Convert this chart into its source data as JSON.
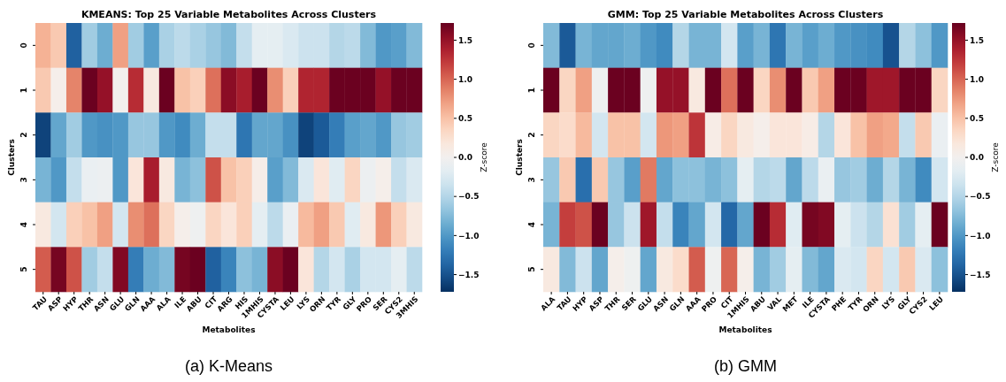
{
  "chart_data": [
    {
      "type": "heatmap",
      "title": "KMEANS: Top 25 Variable Metabolites Across Clusters",
      "xlabel": "Metabolites",
      "ylabel": "Clusters",
      "clabel": "Z-score",
      "annotations": [
        "(a) K-Means"
      ],
      "categories": [
        "TAU",
        "ASP",
        "HYP",
        "THR",
        "ASN",
        "GLU",
        "GLN",
        "AAA",
        "ALA",
        "ILE",
        "ABU",
        "CIT",
        "ARG",
        "HIS",
        "1MHIS",
        "CYSTA",
        "LEU",
        "LYS",
        "ORN",
        "TYR",
        "GLY",
        "PRO",
        "SER",
        "CYS2",
        "3MHIS"
      ],
      "y_categories": [
        "0",
        "1",
        "2",
        "3",
        "4",
        "5"
      ],
      "cells": [
        [
          0.6,
          0.45,
          -1.4,
          -0.6,
          -0.85,
          0.7,
          -0.6,
          -0.95,
          -0.55,
          -0.45,
          -0.55,
          -0.65,
          -0.75,
          -0.4,
          -0.15,
          -0.15,
          -0.25,
          -0.35,
          -0.35,
          -0.5,
          -0.45,
          -0.75,
          -1.0,
          -0.95,
          -0.75
        ],
        [
          0.45,
          0.05,
          0.85,
          1.7,
          1.5,
          0.02,
          1.3,
          0.15,
          1.7,
          0.5,
          0.4,
          0.95,
          1.55,
          1.4,
          1.7,
          0.8,
          0.4,
          1.35,
          1.35,
          1.7,
          1.7,
          1.7,
          1.5,
          1.7,
          1.7
        ],
        [
          -1.6,
          -0.9,
          -0.6,
          -1.0,
          -1.05,
          -1.0,
          -0.65,
          -0.65,
          -1.0,
          -1.1,
          -0.85,
          -0.4,
          -0.4,
          -1.25,
          -0.9,
          -0.9,
          -1.05,
          -1.6,
          -1.45,
          -1.2,
          -0.95,
          -0.9,
          -1.0,
          -0.65,
          -0.6
        ],
        [
          -0.8,
          -1.0,
          -0.4,
          -0.1,
          -0.08,
          -1.0,
          0.2,
          1.4,
          0.15,
          -0.8,
          -0.7,
          1.1,
          0.5,
          0.4,
          0.08,
          -0.95,
          -0.75,
          -0.25,
          0.2,
          -0.2,
          0.35,
          -0.08,
          0.05,
          -0.4,
          -0.25
        ],
        [
          0.15,
          -0.3,
          0.4,
          0.5,
          0.7,
          -0.3,
          0.8,
          0.95,
          0.35,
          0.05,
          -0.05,
          0.35,
          0.2,
          0.4,
          -0.15,
          -0.45,
          -0.1,
          0.55,
          0.7,
          0.45,
          -0.2,
          0.15,
          0.75,
          0.4,
          0.15
        ],
        [
          1.05,
          1.65,
          1.1,
          -0.6,
          -0.4,
          1.6,
          -1.2,
          -0.85,
          -0.75,
          1.65,
          1.7,
          -1.4,
          -1.15,
          -0.7,
          -0.8,
          1.55,
          1.7,
          0.2,
          -0.5,
          -0.3,
          -0.55,
          -0.3,
          -0.3,
          -0.15,
          -0.45
        ]
      ],
      "clim": [
        -1.72,
        1.72
      ],
      "cticks": [
        {
          "value": -1.5,
          "label": "−1.5"
        },
        {
          "value": -1,
          "label": "−1.0"
        },
        {
          "value": -0.5,
          "label": "−0.5"
        },
        {
          "value": 0,
          "label": "0.0"
        },
        {
          "value": 0.5,
          "label": "0.5"
        },
        {
          "value": 1,
          "label": "1.0"
        },
        {
          "value": 1.5,
          "label": "1.5"
        }
      ]
    },
    {
      "type": "heatmap",
      "title": "GMM: Top 25 Variable Metabolites Across Clusters",
      "xlabel": "Metabolites",
      "ylabel": "Clusters",
      "clabel": "Z-score",
      "annotations": [
        "(b) GMM"
      ],
      "categories": [
        "ALA",
        "TAU",
        "HYP",
        "ASP",
        "THR",
        "SER",
        "GLU",
        "ASN",
        "GLN",
        "AAA",
        "PRO",
        "CIT",
        "1MHIS",
        "ABU",
        "VAL",
        "MET",
        "ILE",
        "CYSTA",
        "PHE",
        "TYR",
        "ORN",
        "LYS",
        "GLY",
        "CYS2",
        "LEU"
      ],
      "y_categories": [
        "0",
        "1",
        "2",
        "3",
        "4",
        "5"
      ],
      "cells": [
        [
          -0.75,
          -1.45,
          -0.8,
          -0.9,
          -0.9,
          -0.85,
          -1.0,
          -1.1,
          -0.5,
          -0.8,
          -0.8,
          -0.3,
          -0.95,
          -0.8,
          -1.25,
          -0.8,
          -0.95,
          -0.85,
          -1.0,
          -1.05,
          -1.1,
          -1.5,
          -0.5,
          -0.7,
          -1.0
        ],
        [
          1.7,
          0.35,
          0.7,
          -0.05,
          1.7,
          1.7,
          -0.05,
          1.5,
          1.5,
          0.15,
          1.7,
          0.95,
          1.7,
          0.35,
          0.8,
          1.7,
          0.45,
          0.7,
          1.7,
          1.7,
          1.45,
          1.45,
          1.7,
          1.7,
          0.35
        ],
        [
          0.35,
          0.3,
          0.55,
          -0.3,
          0.5,
          0.5,
          -0.3,
          0.75,
          0.7,
          1.25,
          0.1,
          0.35,
          0.15,
          0.05,
          0.2,
          0.2,
          0.1,
          -0.5,
          0.2,
          0.5,
          0.7,
          0.65,
          -0.4,
          0.45,
          -0.1
        ],
        [
          -0.65,
          0.45,
          -1.3,
          0.45,
          -0.65,
          -0.95,
          0.9,
          -0.9,
          -0.7,
          -0.7,
          -0.8,
          -0.7,
          -0.15,
          -0.5,
          -0.45,
          -0.9,
          -0.45,
          -0.1,
          -0.65,
          -0.6,
          -0.85,
          -0.5,
          -0.8,
          -1.1,
          -0.3
        ],
        [
          -0.8,
          1.2,
          1.1,
          1.7,
          -0.65,
          -0.35,
          1.45,
          -0.4,
          -1.15,
          -0.9,
          -0.3,
          -1.35,
          -0.9,
          1.7,
          1.3,
          -0.2,
          1.65,
          1.6,
          -0.15,
          -0.35,
          -0.5,
          0.25,
          -0.6,
          -0.15,
          1.7
        ],
        [
          0.15,
          -0.75,
          -0.35,
          -0.9,
          0.05,
          -0.05,
          -0.9,
          0.15,
          0.3,
          1.05,
          -0.05,
          1.0,
          0.05,
          -0.8,
          -0.6,
          -0.15,
          -0.75,
          -0.9,
          -0.25,
          -0.3,
          0.35,
          -0.3,
          0.45,
          -0.25,
          -0.7
        ]
      ],
      "clim": [
        -1.72,
        1.72
      ],
      "cticks": [
        {
          "value": -1.5,
          "label": "−1.5"
        },
        {
          "value": -1,
          "label": "−1.0"
        },
        {
          "value": -0.5,
          "label": "−0.5"
        },
        {
          "value": 0,
          "label": "0.0"
        },
        {
          "value": 0.5,
          "label": "0.5"
        },
        {
          "value": 1,
          "label": "1.0"
        },
        {
          "value": 1.5,
          "label": "1.5"
        }
      ]
    }
  ]
}
